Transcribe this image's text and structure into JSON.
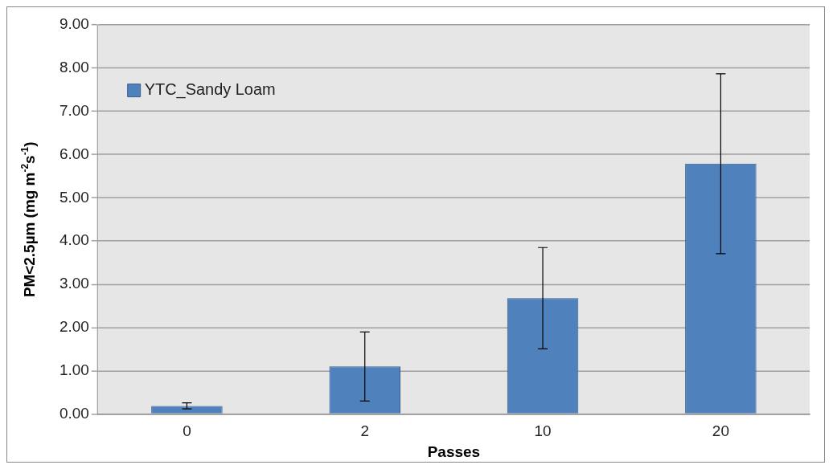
{
  "chart_data": {
    "type": "bar",
    "xlabel": "Passes",
    "ylabel": "PM<2.5µm (mg m$^{-2}$s$^{-1}$)",
    "categories": [
      "0",
      "2",
      "10",
      "20"
    ],
    "series": [
      {
        "name": "YTC_Sandy Loam",
        "color": "#4f81bd",
        "values": [
          0.19,
          1.1,
          2.68,
          5.79
        ],
        "errors": [
          0.07,
          0.8,
          1.17,
          2.08
        ]
      }
    ],
    "ylim": [
      0,
      9
    ],
    "yticks": [
      {
        "value": 0,
        "label": "0.00"
      },
      {
        "value": 1,
        "label": "1.00"
      },
      {
        "value": 2,
        "label": "2.00"
      },
      {
        "value": 3,
        "label": "3.00"
      },
      {
        "value": 4,
        "label": "4.00"
      },
      {
        "value": 5,
        "label": "5.00"
      },
      {
        "value": 6,
        "label": "6.00"
      },
      {
        "value": 7,
        "label": "7.00"
      },
      {
        "value": 8,
        "label": "8.00"
      },
      {
        "value": 9,
        "label": "9.00"
      }
    ],
    "grid": "y",
    "legend": "top left"
  }
}
